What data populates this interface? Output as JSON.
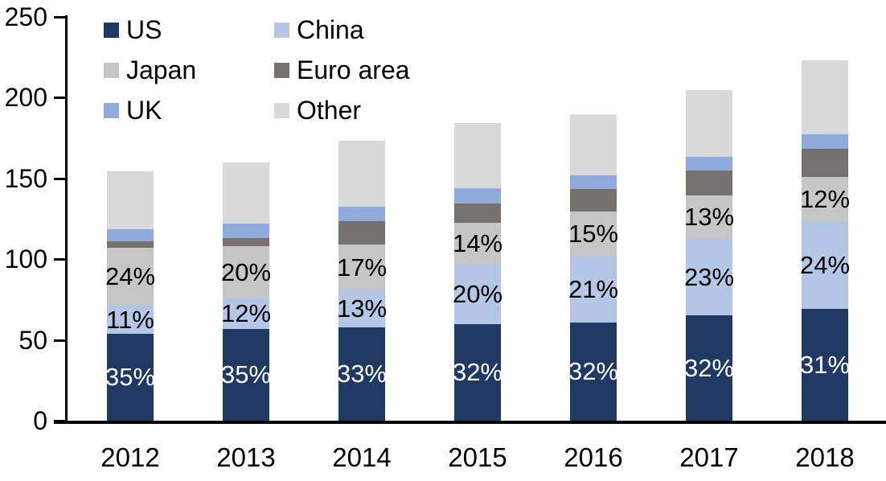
{
  "chart_data": {
    "type": "bar",
    "variant": "stacked",
    "title": "",
    "categories": [
      "2012",
      "2013",
      "2014",
      "2015",
      "2016",
      "2017",
      "2018"
    ],
    "series": [
      {
        "name": "US",
        "color": "#1F3864",
        "values": [
          54,
          57,
          58,
          60,
          61,
          65,
          69
        ],
        "segment_labels": [
          "35%",
          "35%",
          "33%",
          "32%",
          "32%",
          "32%",
          "31%"
        ],
        "label_color": "#ffffff"
      },
      {
        "name": "China",
        "color": "#B4C7E7",
        "values": [
          17,
          18.5,
          22.5,
          36.5,
          40.5,
          47.5,
          54
        ],
        "segment_labels": [
          "11%",
          "12%",
          "13%",
          "20%",
          "21%",
          "23%",
          "24%"
        ],
        "label_color": "#000000"
      },
      {
        "name": "Japan",
        "color": "#C6C6C6",
        "values": [
          36,
          32.5,
          28.5,
          26,
          28,
          27,
          28
        ],
        "segment_labels": [
          "24%",
          "20%",
          "17%",
          "14%",
          "15%",
          "13%",
          "12%"
        ],
        "label_color": "#000000"
      },
      {
        "name": "Euro area",
        "color": "#757171",
        "values": [
          4,
          5,
          14.5,
          12,
          14,
          15.5,
          17.5
        ],
        "segment_labels": null
      },
      {
        "name": "UK",
        "color": "#8FAADC",
        "values": [
          7.5,
          9,
          9,
          9.5,
          8.5,
          8.5,
          9
        ],
        "segment_labels": null
      },
      {
        "name": "Other",
        "color": "#D9D9D9",
        "values": [
          36,
          38,
          41,
          40.5,
          38,
          41,
          45.5
        ],
        "segment_labels": null
      }
    ],
    "y_axis": {
      "min": 0,
      "max": 250,
      "tick_interval": 50,
      "tick_labels": [
        "0",
        "50",
        "100",
        "150",
        "200",
        "250"
      ]
    },
    "legend": {
      "position": "top-left",
      "columns": 2,
      "order": [
        "US",
        "China",
        "Japan",
        "Euro area",
        "UK",
        "Other"
      ]
    },
    "grid": false
  }
}
